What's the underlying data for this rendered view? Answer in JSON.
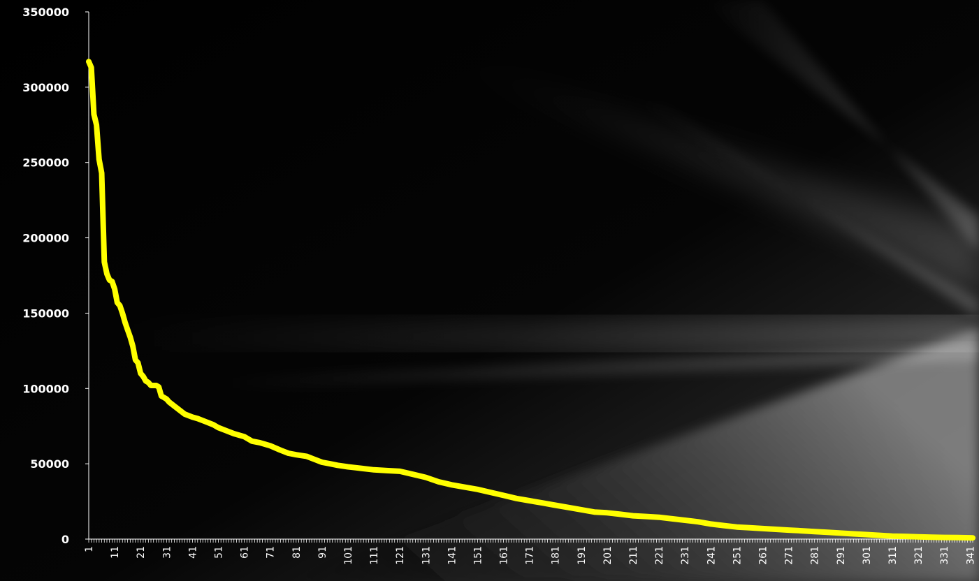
{
  "chart_data": {
    "type": "line",
    "title": "",
    "xlabel": "",
    "ylabel": "",
    "ylim": [
      0,
      350000
    ],
    "xlim": [
      1,
      342
    ],
    "y_ticks": [
      0,
      50000,
      100000,
      150000,
      200000,
      250000,
      300000,
      350000
    ],
    "y_tick_labels": [
      "0",
      "50000",
      "100000",
      "150000",
      "200000",
      "250000",
      "300000",
      "350000"
    ],
    "x_tick_labels": [
      "1",
      "11",
      "21",
      "31",
      "41",
      "51",
      "61",
      "71",
      "81",
      "91",
      "101",
      "111",
      "121",
      "131",
      "141",
      "151",
      "161",
      "171",
      "181",
      "191",
      "201",
      "211",
      "221",
      "231",
      "241",
      "251",
      "261",
      "271",
      "281",
      "291",
      "301",
      "311",
      "321",
      "331",
      "341"
    ],
    "grid": false,
    "legend": "none",
    "line_color": "#ffff00",
    "background": "dark gradient with light streaks",
    "series": [
      {
        "x": [
          1,
          2,
          3,
          4,
          5,
          6,
          7,
          8,
          9,
          10,
          11,
          12,
          13,
          14,
          15,
          16,
          17,
          18,
          19,
          20,
          21,
          22,
          23,
          24,
          25,
          26,
          27,
          28,
          29,
          30,
          31,
          32,
          35,
          38,
          41,
          43,
          46,
          49,
          51,
          54,
          57,
          61,
          64,
          67,
          71,
          75,
          78,
          81,
          85,
          88,
          91,
          94,
          97,
          101,
          106,
          111,
          116,
          121,
          126,
          131,
          136,
          141,
          146,
          151,
          156,
          161,
          166,
          171,
          176,
          181,
          186,
          191,
          196,
          201,
          206,
          211,
          216,
          221,
          226,
          231,
          236,
          241,
          246,
          251,
          256,
          261,
          266,
          271,
          276,
          281,
          286,
          291,
          296,
          301,
          306,
          311,
          316,
          321,
          326,
          331,
          336,
          341,
          342
        ],
        "y": [
          317000,
          313000,
          282000,
          275000,
          252000,
          243000,
          184000,
          176000,
          172000,
          171000,
          166000,
          157000,
          155000,
          150000,
          144000,
          139000,
          134000,
          128000,
          119000,
          117000,
          110000,
          108000,
          105000,
          104000,
          102000,
          102000,
          102000,
          101000,
          95000,
          94000,
          93000,
          91000,
          87000,
          83000,
          81000,
          80000,
          78000,
          76000,
          74000,
          72000,
          70000,
          68000,
          65000,
          64000,
          62000,
          59000,
          57000,
          56000,
          55000,
          53000,
          51000,
          50000,
          49000,
          48000,
          47000,
          46000,
          45500,
          45000,
          43000,
          41000,
          38000,
          36000,
          34500,
          33000,
          31000,
          29000,
          27000,
          25500,
          24000,
          22500,
          21000,
          19500,
          18000,
          17500,
          16500,
          15500,
          15000,
          14500,
          13500,
          12500,
          11500,
          10000,
          9000,
          8000,
          7500,
          7000,
          6500,
          6000,
          5500,
          5000,
          4500,
          4000,
          3500,
          3000,
          2500,
          2000,
          1800,
          1500,
          1300,
          1100,
          1000,
          900,
          800
        ]
      }
    ]
  }
}
